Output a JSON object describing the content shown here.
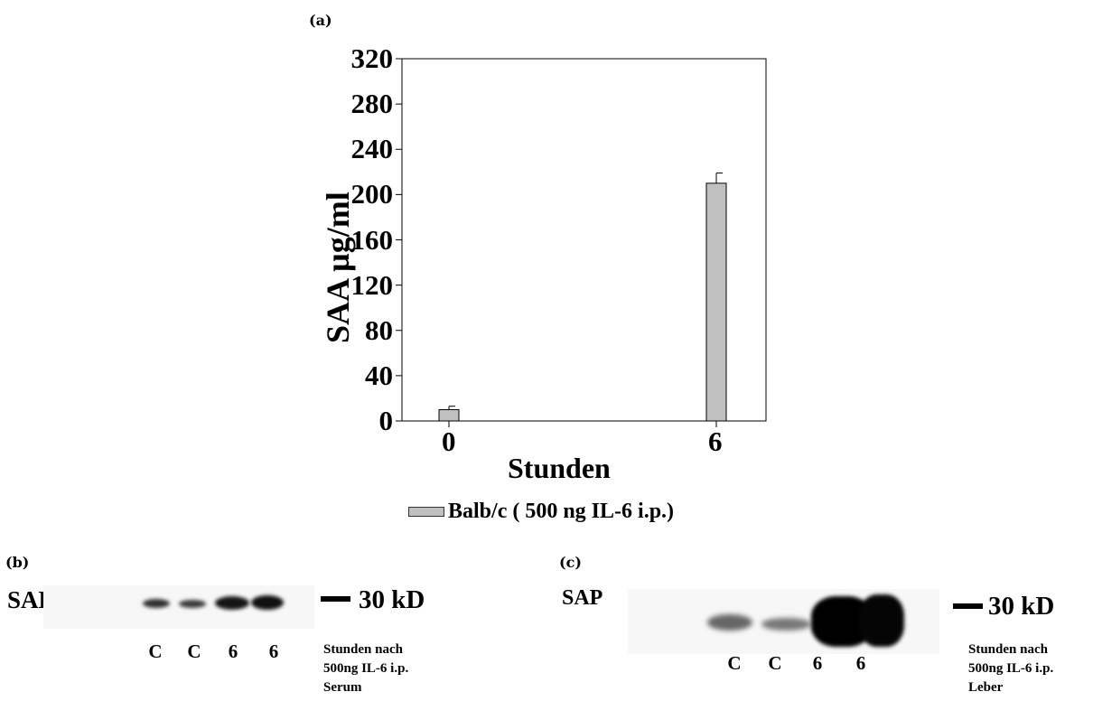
{
  "panels": {
    "a_label": "(a)",
    "b_label": "(b)",
    "c_label": "(c)"
  },
  "chart_data": {
    "type": "bar",
    "categories": [
      "0",
      "6"
    ],
    "series": [
      {
        "name": "Balb/c ( 500 ng IL-6  i.p.)",
        "values": [
          10,
          210
        ],
        "errors": [
          3,
          9
        ],
        "color": "#c0c0c0"
      }
    ],
    "xlabel": "Stunden",
    "ylabel": "SAA µg/ml",
    "ylim": [
      0,
      320
    ],
    "yticks": [
      "0",
      "40",
      "80",
      "120",
      "160",
      "200",
      "240",
      "280",
      "320"
    ],
    "grid": false,
    "legend_position": "bottom"
  },
  "blot_b": {
    "protein_label": "SAP",
    "marker_label": "30 kD",
    "lanes": [
      "C",
      "C",
      "6",
      "6"
    ],
    "band_intensity": [
      0.45,
      0.4,
      0.85,
      0.9
    ],
    "note_lines": [
      "Stunden nach",
      "500ng IL-6 i.p.",
      "Serum"
    ]
  },
  "blot_c": {
    "protein_label": "SAP",
    "marker_label": "30 kD",
    "lanes": [
      "C",
      "C",
      "6",
      "6"
    ],
    "band_intensity": [
      0.35,
      0.3,
      1.0,
      1.0
    ],
    "note_lines": [
      "Stunden nach",
      "500ng IL-6 i.p.",
      "Leber"
    ]
  }
}
